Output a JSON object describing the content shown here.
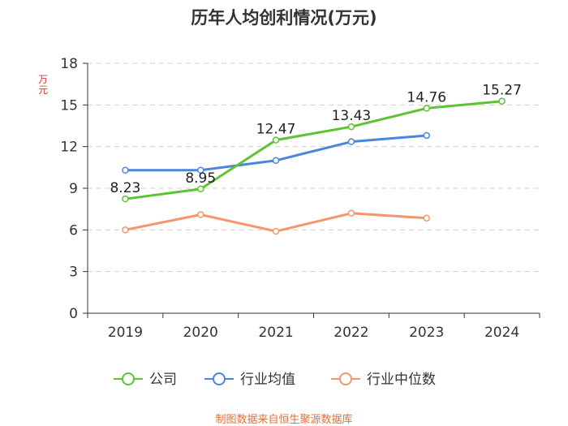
{
  "chart_data": {
    "type": "line",
    "title": "历年人均创利情况(万元)",
    "ylabel": "万元",
    "xlabel": "",
    "categories": [
      "2019",
      "2020",
      "2021",
      "2022",
      "2023",
      "2024"
    ],
    "ylim": [
      0,
      18
    ],
    "yticks": [
      0,
      3,
      6,
      9,
      12,
      15,
      18
    ],
    "grid": true,
    "legend_position": "bottom",
    "series": [
      {
        "name": "公司",
        "color": "#5cc433",
        "values": [
          8.23,
          8.95,
          12.47,
          13.43,
          14.76,
          15.27
        ],
        "labels": [
          "8.23",
          "8.95",
          "12.47",
          "13.43",
          "14.76",
          "15.27"
        ]
      },
      {
        "name": "行业均值",
        "color": "#4d84dc",
        "values": [
          10.3,
          10.3,
          11.0,
          12.35,
          12.8,
          null
        ]
      },
      {
        "name": "行业中位数",
        "color": "#f5956b",
        "values": [
          6.0,
          7.1,
          5.9,
          7.2,
          6.85,
          null
        ]
      }
    ]
  },
  "source": "制图数据来自恒生聚源数据库"
}
